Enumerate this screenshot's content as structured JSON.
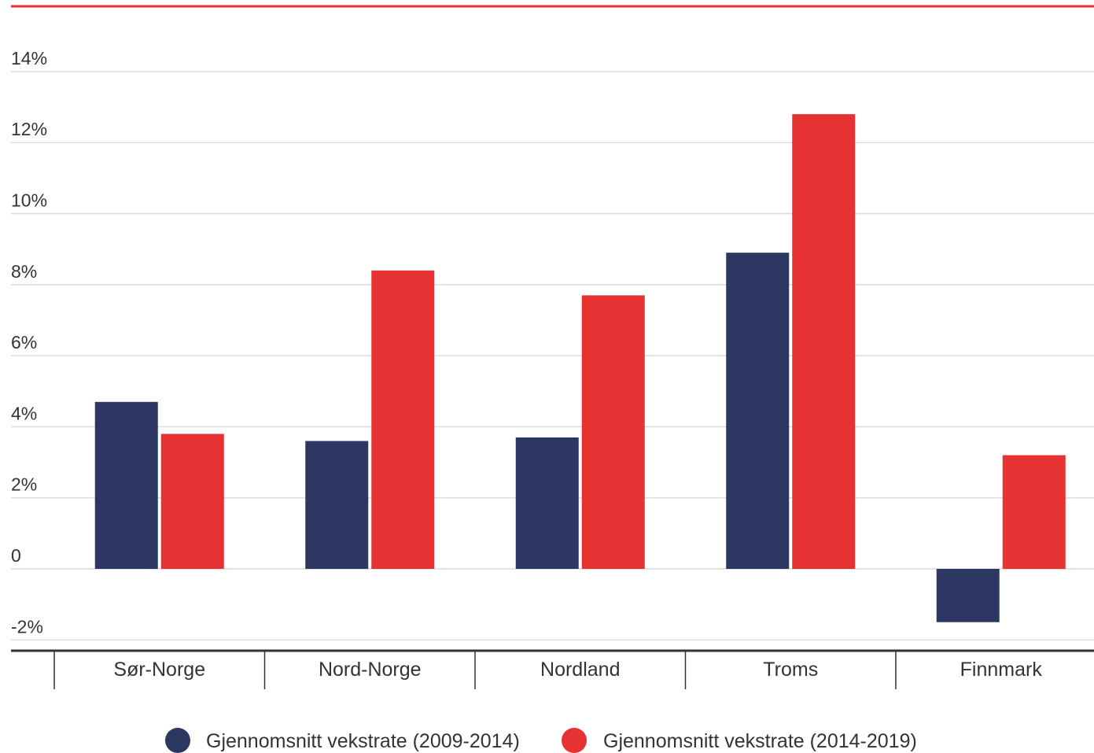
{
  "chart_data": {
    "type": "bar",
    "categories": [
      "Sør-Norge",
      "Nord-Norge",
      "Nordland",
      "Troms",
      "Finnmark"
    ],
    "series": [
      {
        "name": "Gjennomsnitt vekstrate (2009-2014)",
        "color": "#2d3862",
        "values": [
          4.7,
          3.6,
          3.7,
          8.9,
          -1.5
        ]
      },
      {
        "name": "Gjennomsnitt vekstrate (2014-2019)",
        "color": "#e63232",
        "values": [
          3.8,
          8.4,
          7.7,
          12.8,
          3.2
        ]
      }
    ],
    "yticks": [
      {
        "value": 14,
        "label": "14%"
      },
      {
        "value": 12,
        "label": "12%"
      },
      {
        "value": 10,
        "label": "10%"
      },
      {
        "value": 8,
        "label": "8%"
      },
      {
        "value": 6,
        "label": "6%"
      },
      {
        "value": 4,
        "label": "4%"
      },
      {
        "value": 2,
        "label": "2%"
      },
      {
        "value": 0,
        "label": "0"
      },
      {
        "value": -2,
        "label": "-2%"
      }
    ],
    "ylim": [
      -2.3,
      14.5
    ],
    "grid": true,
    "legend_position": "bottom-center",
    "title": "",
    "xlabel": "",
    "ylabel": "",
    "accent_color": "#e63232"
  }
}
